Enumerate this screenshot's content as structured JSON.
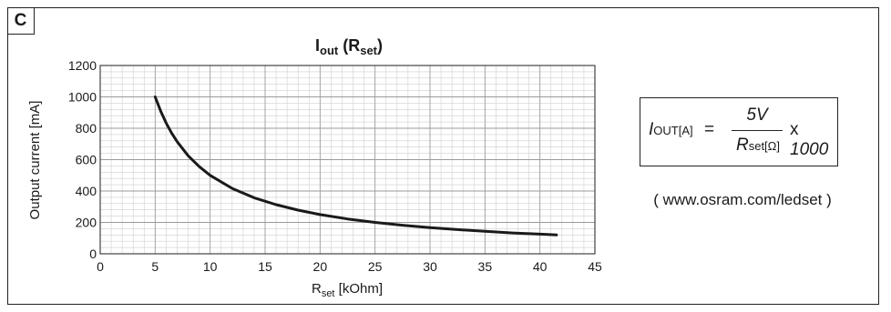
{
  "panel_label": "C",
  "equation": {
    "lhs_symbol": "I",
    "lhs_subscript": "OUT[A]",
    "equals": "=",
    "numerator": "5V",
    "denominator_symbol": "R",
    "denominator_subscript": "set[Ω]",
    "multiplier_sign": "x",
    "multiplier_value": "1000"
  },
  "url_note": "( www.osram.com/ledset )",
  "chart_data": {
    "type": "line",
    "title": "Iout (Rset)",
    "title_parts": {
      "main": "I",
      "main_sub": "out",
      "paren_open": " (",
      "arg": "R",
      "arg_sub": "set",
      "paren_close": ")"
    },
    "xlabel": "Rset [kOhm]",
    "xlabel_parts": {
      "main": "R",
      "sub": "set",
      "rest": " [kOhm]"
    },
    "ylabel": "Output current [mA]",
    "xlim": [
      0,
      45
    ],
    "ylim": [
      0,
      1200
    ],
    "x_ticks": [
      0,
      5,
      10,
      15,
      20,
      25,
      30,
      35,
      40,
      45
    ],
    "y_ticks": [
      0,
      200,
      400,
      600,
      800,
      1000,
      1200
    ],
    "grid": true,
    "series": [
      {
        "color": "#1a1a1a",
        "x": [
          5,
          5.5,
          6,
          6.5,
          7,
          8,
          9,
          10,
          12,
          14,
          16,
          18,
          20,
          22.5,
          25,
          27.5,
          30,
          32.5,
          35,
          37.5,
          40,
          41.5
        ],
        "y": [
          1000,
          909,
          833,
          769,
          714,
          625,
          556,
          500,
          417,
          357,
          313,
          278,
          250,
          222,
          200,
          182,
          167,
          154,
          143,
          133,
          125,
          120
        ]
      }
    ]
  }
}
